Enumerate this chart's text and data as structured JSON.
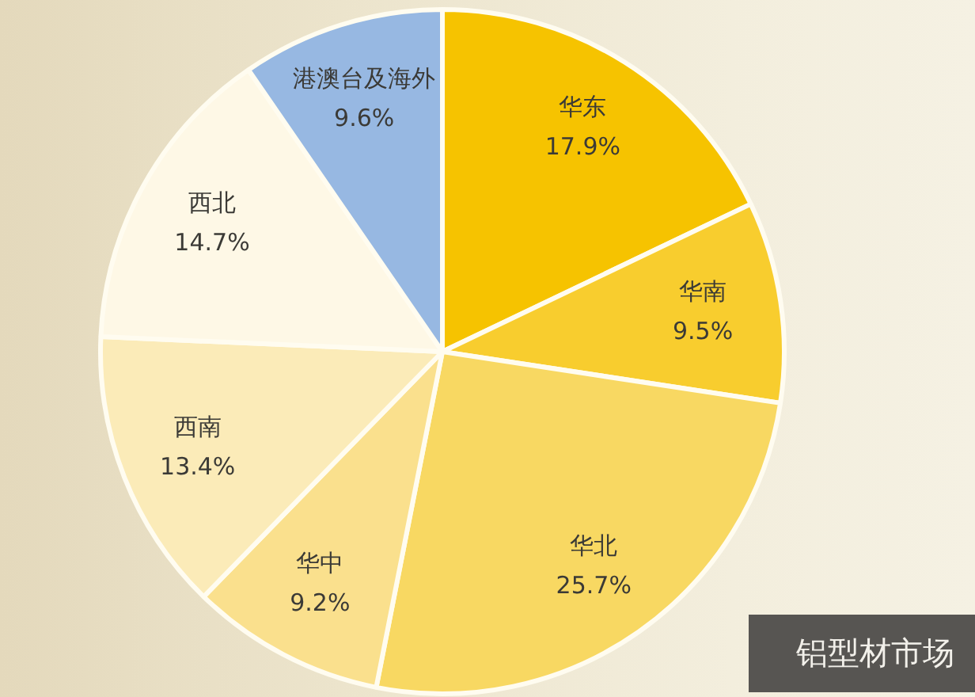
{
  "chart_data": {
    "type": "pie",
    "title": "铝型材市场",
    "categories": [
      "华东",
      "华南",
      "华北",
      "华中",
      "西南",
      "西北",
      "港澳台及海外"
    ],
    "values": [
      17.9,
      9.5,
      25.7,
      9.2,
      13.4,
      14.7,
      9.6
    ],
    "value_labels": [
      "17.9%",
      "9.5%",
      "25.7%",
      "9.2%",
      "13.4%",
      "14.7%",
      "9.6%"
    ],
    "colors": [
      "#f6c300",
      "#f8cd2e",
      "#f8d862",
      "#fae08d",
      "#fbebb8",
      "#fef8e6",
      "#97b8e2"
    ]
  }
}
